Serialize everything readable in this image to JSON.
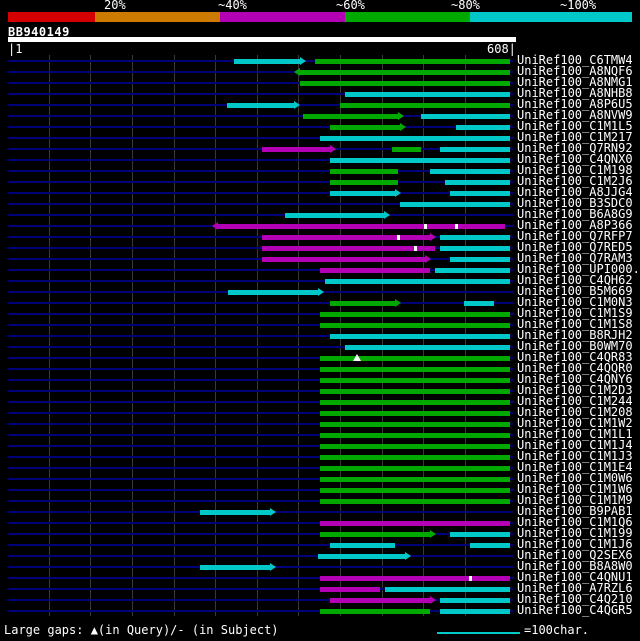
{
  "title": "BB940149",
  "legend": {
    "labels": [
      "20%",
      "~40%",
      "~60%",
      "~80%",
      "~100%"
    ],
    "colors": [
      "#d40000",
      "#cc7a00",
      "#b400b4",
      "#00a800",
      "#00c8c8"
    ]
  },
  "scale": {
    "start_label": "|1",
    "end_label": "608|",
    "query_length": 608
  },
  "footer": {
    "large_gaps_label": "Large gaps: ▲(in Query)/- (in Subject)",
    "scale_bar_label": "=100char.",
    "scale_bar_chars": 100
  },
  "chart_data": {
    "type": "alignment-map",
    "query": {
      "name": "BB940149",
      "length": 608
    },
    "identity_buckets": [
      "20%",
      "~40%",
      "~60%",
      "~80%",
      "~100%"
    ],
    "rows": [
      {
        "id": "UniRef100_C6TMW4",
        "segments": [
          {
            "start": 273,
            "end": 352,
            "identity": "~100%",
            "arrow": "right"
          },
          {
            "start": 370,
            "end": 604,
            "identity": "~80%"
          }
        ]
      },
      {
        "id": "UniRef100_A8NQF6",
        "segments": [
          {
            "start": 352,
            "end": 604,
            "identity": "~80%",
            "arrow": "left"
          }
        ]
      },
      {
        "id": "UniRef100_A8NMG1",
        "segments": [
          {
            "start": 352,
            "end": 604,
            "identity": "~80%"
          }
        ]
      },
      {
        "id": "UniRef100_A8NHB8",
        "segments": [
          {
            "start": 406,
            "end": 604,
            "identity": "~100%"
          }
        ]
      },
      {
        "id": "UniRef100_A8P6U5",
        "segments": [
          {
            "start": 264,
            "end": 345,
            "identity": "~100%",
            "arrow": "right"
          },
          {
            "start": 400,
            "end": 604,
            "identity": "~80%"
          }
        ]
      },
      {
        "id": "UniRef100_A8NVW9",
        "segments": [
          {
            "start": 355,
            "end": 470,
            "identity": "~80%",
            "arrow": "right"
          },
          {
            "start": 497,
            "end": 604,
            "identity": "~100%"
          }
        ]
      },
      {
        "id": "UniRef100_C1M1L5",
        "segments": [
          {
            "start": 388,
            "end": 472,
            "identity": "~80%",
            "arrow": "right"
          },
          {
            "start": 540,
            "end": 604,
            "identity": "~100%"
          }
        ]
      },
      {
        "id": "UniRef100_C1M217",
        "segments": [
          {
            "start": 376,
            "end": 604,
            "identity": "~100%"
          }
        ]
      },
      {
        "id": "UniRef100_Q7RN92",
        "segments": [
          {
            "start": 306,
            "end": 388,
            "identity": "~60%",
            "arrow": "right"
          },
          {
            "start": 462,
            "end": 497,
            "identity": "~80%"
          },
          {
            "start": 520,
            "end": 604,
            "identity": "~100%"
          }
        ]
      },
      {
        "id": "UniRef100_C4QNX0",
        "segments": [
          {
            "start": 388,
            "end": 604,
            "identity": "~100%"
          }
        ]
      },
      {
        "id": "UniRef100_C1M198",
        "segments": [
          {
            "start": 388,
            "end": 470,
            "identity": "~80%"
          },
          {
            "start": 508,
            "end": 604,
            "identity": "~100%"
          }
        ]
      },
      {
        "id": "UniRef100_C1M2J6",
        "segments": [
          {
            "start": 388,
            "end": 470,
            "identity": "~80%"
          },
          {
            "start": 526,
            "end": 604,
            "identity": "~100%"
          }
        ]
      },
      {
        "id": "UniRef100_A8JJG4",
        "segments": [
          {
            "start": 388,
            "end": 466,
            "identity": "~100%",
            "arrow": "right"
          },
          {
            "start": 532,
            "end": 604,
            "identity": "~100%"
          }
        ]
      },
      {
        "id": "UniRef100_B3SDC0",
        "segments": [
          {
            "start": 472,
            "end": 604,
            "identity": "~100%"
          }
        ]
      },
      {
        "id": "UniRef100_B6A8G9",
        "segments": [
          {
            "start": 334,
            "end": 453,
            "identity": "~100%",
            "arrow": "right"
          }
        ]
      },
      {
        "id": "UniRef100_A8P366",
        "segments": [
          {
            "start": 253,
            "end": 598,
            "identity": "~60%",
            "arrow": "left"
          }
        ],
        "marks": [
          {
            "pos": 502,
            "type": "gap-subject"
          },
          {
            "pos": 540,
            "type": "gap-subject"
          }
        ]
      },
      {
        "id": "UniRef100_Q7RFP7",
        "segments": [
          {
            "start": 306,
            "end": 508,
            "identity": "~60%",
            "arrow": "right"
          },
          {
            "start": 520,
            "end": 604,
            "identity": "~100%"
          }
        ],
        "marks": [
          {
            "pos": 470,
            "type": "gap-subject"
          }
        ]
      },
      {
        "id": "UniRef100_Q7RED5",
        "segments": [
          {
            "start": 306,
            "end": 514,
            "identity": "~60%"
          },
          {
            "start": 520,
            "end": 604,
            "identity": "~100%"
          }
        ],
        "marks": [
          {
            "pos": 490,
            "type": "gap-subject"
          }
        ]
      },
      {
        "id": "UniRef100_Q7RAM3",
        "segments": [
          {
            "start": 306,
            "end": 502,
            "identity": "~60%",
            "arrow": "right"
          },
          {
            "start": 532,
            "end": 604,
            "identity": "~100%"
          }
        ]
      },
      {
        "id": "UniRef100_UPI000..",
        "segments": [
          {
            "start": 376,
            "end": 508,
            "identity": "~60%"
          },
          {
            "start": 514,
            "end": 604,
            "identity": "~100%"
          }
        ]
      },
      {
        "id": "UniRef100_C4QH62",
        "segments": [
          {
            "start": 382,
            "end": 604,
            "identity": "~100%"
          }
        ]
      },
      {
        "id": "UniRef100_B5M669",
        "segments": [
          {
            "start": 265,
            "end": 374,
            "identity": "~100%",
            "arrow": "right"
          }
        ]
      },
      {
        "id": "UniRef100_C1M0N3",
        "segments": [
          {
            "start": 388,
            "end": 466,
            "identity": "~80%",
            "arrow": "right"
          },
          {
            "start": 549,
            "end": 585,
            "identity": "~100%"
          }
        ]
      },
      {
        "id": "UniRef100_C1M1S9",
        "segments": [
          {
            "start": 376,
            "end": 604,
            "identity": "~80%"
          }
        ]
      },
      {
        "id": "UniRef100_C1M1S8",
        "segments": [
          {
            "start": 376,
            "end": 604,
            "identity": "~80%"
          }
        ]
      },
      {
        "id": "UniRef100_B8RJH2",
        "segments": [
          {
            "start": 388,
            "end": 604,
            "identity": "~100%"
          }
        ]
      },
      {
        "id": "UniRef100_B0WM70",
        "segments": [
          {
            "start": 406,
            "end": 604,
            "identity": "~100%"
          }
        ]
      },
      {
        "id": "UniRef100_C4QR83",
        "segments": [
          {
            "start": 376,
            "end": 604,
            "identity": "~80%"
          }
        ],
        "marks": [
          {
            "pos": 421,
            "type": "gap-query"
          }
        ]
      },
      {
        "id": "UniRef100_C4QQR0",
        "segments": [
          {
            "start": 376,
            "end": 604,
            "identity": "~80%"
          }
        ]
      },
      {
        "id": "UniRef100_C4QNY6",
        "segments": [
          {
            "start": 376,
            "end": 604,
            "identity": "~80%"
          }
        ]
      },
      {
        "id": "UniRef100_C1M2D3",
        "segments": [
          {
            "start": 376,
            "end": 604,
            "identity": "~80%"
          }
        ]
      },
      {
        "id": "UniRef100_C1M244",
        "segments": [
          {
            "start": 376,
            "end": 604,
            "identity": "~80%"
          }
        ]
      },
      {
        "id": "UniRef100_C1M208",
        "segments": [
          {
            "start": 376,
            "end": 604,
            "identity": "~80%"
          }
        ]
      },
      {
        "id": "UniRef100_C1M1W2",
        "segments": [
          {
            "start": 376,
            "end": 604,
            "identity": "~80%"
          }
        ]
      },
      {
        "id": "UniRef100_C1M1L1",
        "segments": [
          {
            "start": 376,
            "end": 604,
            "identity": "~80%"
          }
        ]
      },
      {
        "id": "UniRef100_C1M1J4",
        "segments": [
          {
            "start": 376,
            "end": 604,
            "identity": "~80%"
          }
        ]
      },
      {
        "id": "UniRef100_C1M1J3",
        "segments": [
          {
            "start": 376,
            "end": 604,
            "identity": "~80%"
          }
        ]
      },
      {
        "id": "UniRef100_C1M1E4",
        "segments": [
          {
            "start": 376,
            "end": 604,
            "identity": "~80%"
          }
        ]
      },
      {
        "id": "UniRef100_C1M0W6",
        "segments": [
          {
            "start": 376,
            "end": 604,
            "identity": "~80%"
          }
        ]
      },
      {
        "id": "UniRef100_C1M1W6",
        "segments": [
          {
            "start": 376,
            "end": 604,
            "identity": "~80%"
          }
        ]
      },
      {
        "id": "UniRef100_C1M1M9",
        "segments": [
          {
            "start": 376,
            "end": 604,
            "identity": "~80%"
          }
        ]
      },
      {
        "id": "UniRef100_B9PAB1",
        "segments": [
          {
            "start": 232,
            "end": 316,
            "identity": "~100%",
            "arrow": "right"
          }
        ]
      },
      {
        "id": "UniRef100_C1M1Q6",
        "segments": [
          {
            "start": 376,
            "end": 604,
            "identity": "~60%"
          }
        ]
      },
      {
        "id": "UniRef100_C1M199",
        "segments": [
          {
            "start": 376,
            "end": 508,
            "identity": "~80%",
            "arrow": "right"
          },
          {
            "start": 532,
            "end": 604,
            "identity": "~100%"
          }
        ]
      },
      {
        "id": "UniRef100_C1M1J6",
        "segments": [
          {
            "start": 388,
            "end": 466,
            "identity": "~100%"
          },
          {
            "start": 556,
            "end": 604,
            "identity": "~100%"
          }
        ]
      },
      {
        "id": "UniRef100_Q2SEX6",
        "segments": [
          {
            "start": 374,
            "end": 478,
            "identity": "~100%",
            "arrow": "right"
          }
        ]
      },
      {
        "id": "UniRef100_B8A8W0",
        "segments": [
          {
            "start": 232,
            "end": 316,
            "identity": "~100%",
            "arrow": "right"
          }
        ]
      },
      {
        "id": "UniRef100_C4QNU1",
        "segments": [
          {
            "start": 376,
            "end": 604,
            "identity": "~60%"
          }
        ],
        "marks": [
          {
            "pos": 556,
            "type": "gap-subject"
          }
        ]
      },
      {
        "id": "UniRef100_A7RZL6",
        "segments": [
          {
            "start": 376,
            "end": 448,
            "identity": "~60%"
          },
          {
            "start": 454,
            "end": 604,
            "identity": "~100%"
          }
        ]
      },
      {
        "id": "UniRef100_C4Q210",
        "segments": [
          {
            "start": 388,
            "end": 508,
            "identity": "~60%",
            "arrow": "right"
          },
          {
            "start": 520,
            "end": 604,
            "identity": "~100%"
          }
        ]
      },
      {
        "id": "UniRef100_C4QGR5",
        "segments": [
          {
            "start": 376,
            "end": 508,
            "identity": "~80%"
          },
          {
            "start": 520,
            "end": 604,
            "identity": "~100%"
          }
        ]
      }
    ]
  }
}
